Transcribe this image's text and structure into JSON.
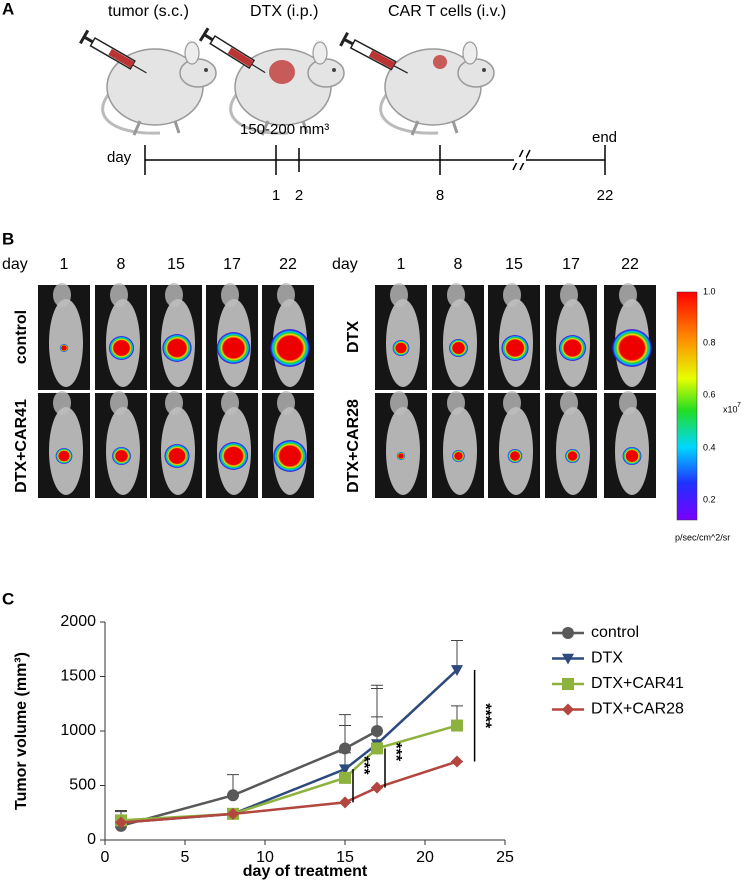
{
  "panel_a": {
    "label": "A",
    "steps": [
      "tumor (s.c.)",
      "DTX (i.p.)",
      "CAR T cells (i.v.)"
    ],
    "size_note": "150-200 mm³",
    "day_label": "day",
    "end_label": "end",
    "days": [
      "1",
      "2",
      "8",
      "22"
    ]
  },
  "panel_b": {
    "label": "B",
    "day_label": "day",
    "days": [
      "1",
      "8",
      "15",
      "17",
      "22"
    ],
    "groups": [
      "control",
      "DTX+CAR41",
      "DTX",
      "DTX+CAR28"
    ],
    "colorbar_ticks": [
      "1.0",
      "0.8",
      "0.6",
      "0.4",
      "0.2"
    ],
    "colorbar_scale": "x10",
    "colorbar_exponent": "7",
    "colorbar_unit": "p/sec/cm^2/sr"
  },
  "chart_data": {
    "type": "line",
    "panel_label": "C",
    "x_label": "day of treatment",
    "y_label": "Tumor volume (mm³)",
    "x": [
      1,
      8,
      15,
      17,
      22
    ],
    "series": [
      {
        "name": "control",
        "color": "#595959",
        "marker": "circle",
        "values": [
          130,
          410,
          840,
          1000,
          null
        ],
        "errors": [
          140,
          190,
          310,
          420,
          null
        ]
      },
      {
        "name": "DTX",
        "color": "#2e4a7d",
        "marker": "triangle-down",
        "values": [
          160,
          240,
          650,
          880,
          1560
        ],
        "errors": [
          110,
          0,
          400,
          510,
          270
        ]
      },
      {
        "name": "DTX+CAR41",
        "color": "#8db33e",
        "marker": "square",
        "values": [
          180,
          240,
          570,
          840,
          1050
        ],
        "errors": [
          90,
          0,
          230,
          290,
          180
        ]
      },
      {
        "name": "DTX+CAR28",
        "color": "#b3463f",
        "marker": "diamond",
        "values": [
          160,
          240,
          345,
          480,
          720
        ],
        "errors": [
          100,
          0,
          0,
          0,
          0
        ]
      }
    ],
    "annotations": [
      "***",
      "***",
      "****"
    ],
    "xlim": [
      0,
      25
    ],
    "ylim": [
      0,
      2000
    ],
    "xticks": [
      0,
      5,
      10,
      15,
      20,
      25
    ],
    "yticks": [
      0,
      500,
      1000,
      1500,
      2000
    ],
    "grid": false
  }
}
